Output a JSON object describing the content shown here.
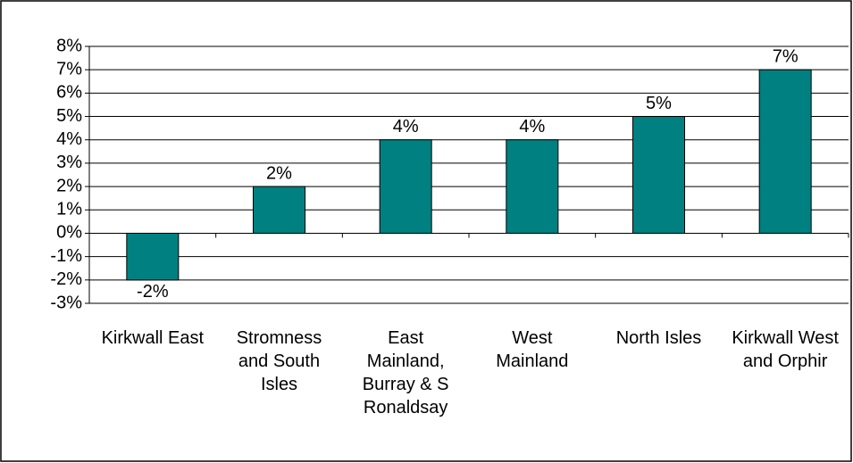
{
  "chart_data": {
    "type": "bar",
    "categories": [
      "Kirkwall East",
      "Stromness and South Isles",
      "East Mainland, Burray & S Ronaldsay",
      "West Mainland",
      "North Isles",
      "Kirkwall West and Orphir"
    ],
    "values": [
      -2,
      2,
      4,
      4,
      5,
      7
    ],
    "value_labels": [
      "-2%",
      "2%",
      "4%",
      "4%",
      "5%",
      "7%"
    ],
    "color": "#008080",
    "ylim": [
      -3,
      8
    ],
    "yticks": [
      {
        "value": -3,
        "label": "-3%"
      },
      {
        "value": -2,
        "label": "-2%"
      },
      {
        "value": -1,
        "label": "-1%"
      },
      {
        "value": 0,
        "label": "0%"
      },
      {
        "value": 1,
        "label": "1%"
      },
      {
        "value": 2,
        "label": "2%"
      },
      {
        "value": 3,
        "label": "3%"
      },
      {
        "value": 4,
        "label": "4%"
      },
      {
        "value": 5,
        "label": "5%"
      },
      {
        "value": 6,
        "label": "6%"
      },
      {
        "value": 7,
        "label": "7%"
      },
      {
        "value": 8,
        "label": "8%"
      }
    ],
    "grid": true
  }
}
